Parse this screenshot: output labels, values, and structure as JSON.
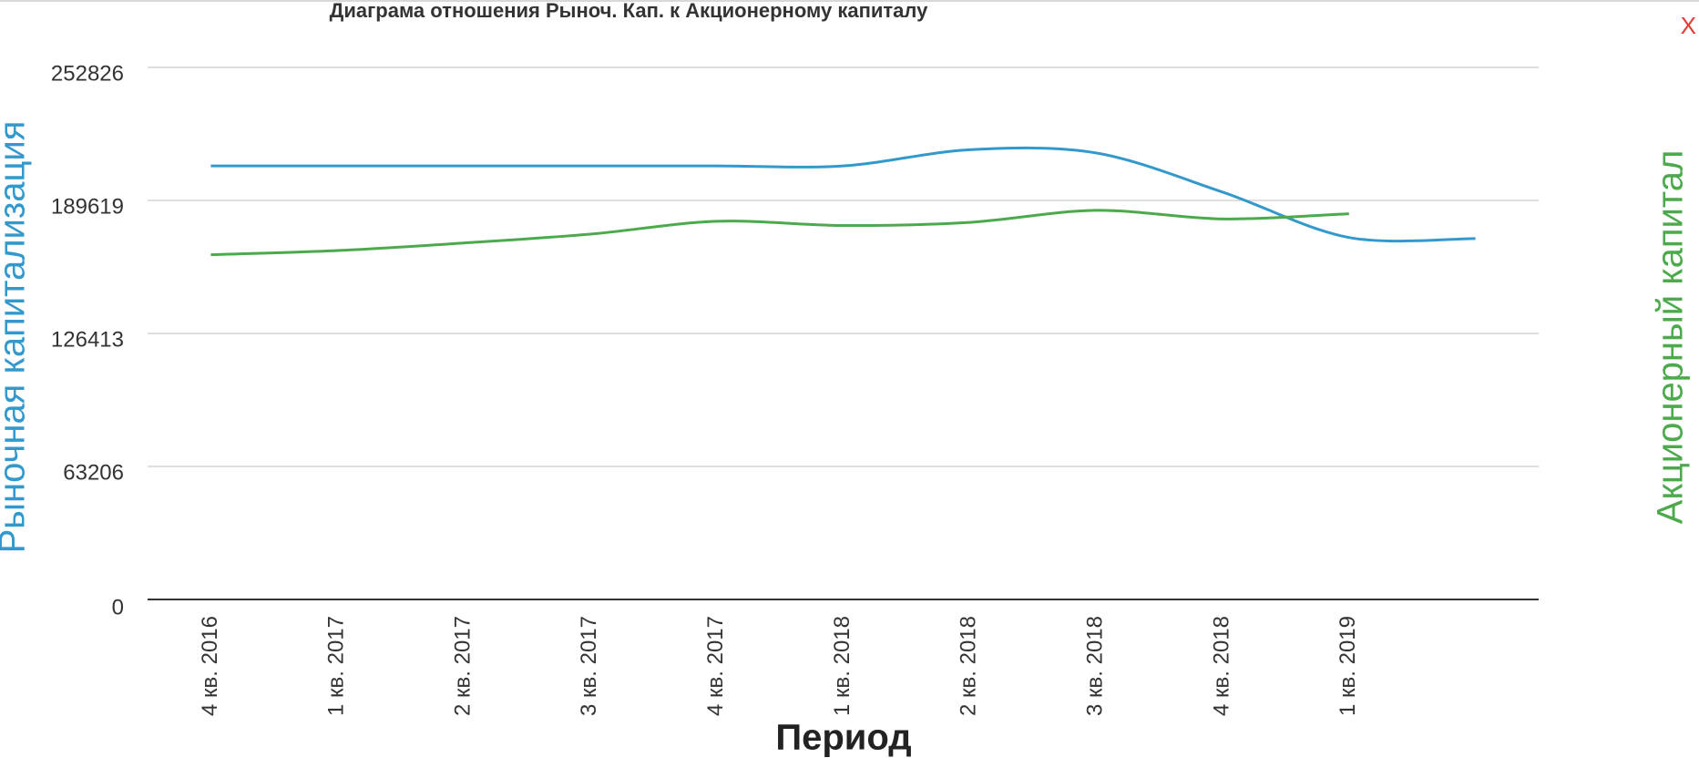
{
  "chart_data": {
    "type": "line",
    "title": "Диаграма отношения Рыноч. Кап. к Акционерному капиталу",
    "close_label": "X",
    "x_label": "Период",
    "y_label": "Рыночная капитализация",
    "y2_label": "Акционерный капитал",
    "categories": [
      "4 кв. 2016",
      "1 кв. 2017",
      "2 кв. 2017",
      "3 кв. 2017",
      "4 кв. 2017",
      "1 кв. 2018",
      "2 кв. 2018",
      "3 кв. 2018",
      "4 кв. 2018",
      "1 кв. 2019",
      null
    ],
    "series": [
      {
        "name": "Рыночная капитализация",
        "color": "#3399cc",
        "values": [
          206000,
          206000,
          206000,
          206000,
          206000,
          206000,
          213700,
          212200,
          193600,
          172000,
          171500
        ]
      },
      {
        "name": "Акционерный капитал",
        "color": "#4caa4c",
        "values": [
          163800,
          165800,
          169400,
          173600,
          179700,
          177700,
          179200,
          184900,
          180800,
          183300,
          null
        ]
      }
    ],
    "ylim": [
      0,
      252826
    ],
    "yticks": [
      0,
      63206,
      126413,
      189619,
      252826
    ],
    "grid": true
  }
}
